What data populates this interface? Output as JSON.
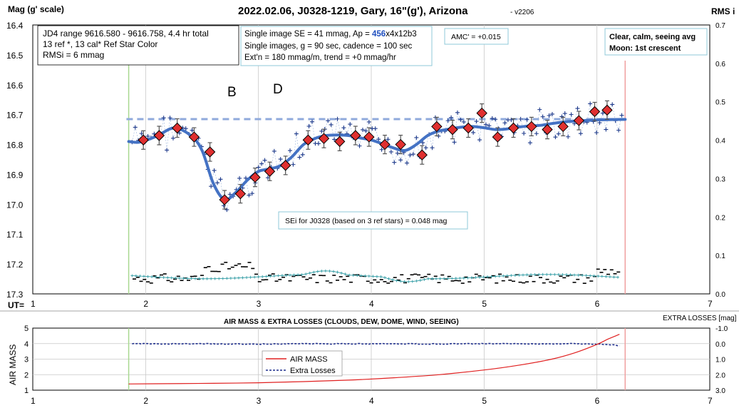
{
  "top_chart": {
    "title": "2022.02.06, J0328-1219, Gary, 16\"(g'), Arizona",
    "version": "- v2206",
    "ylabel": "Mag (g' scale)",
    "rlabel": "RMS i",
    "xlabel": "UT=",
    "y_ticks": [
      "16.4",
      "16.5",
      "16.6",
      "16.7",
      "16.8",
      "16.9",
      "17.0",
      "17.1",
      "17.2",
      "17.3"
    ],
    "r_ticks": [
      "0.7",
      "0.6",
      "0.5",
      "0.4",
      "0.3",
      "0.2",
      "0.1",
      "0.0"
    ],
    "x_ticks": [
      "1",
      "2",
      "3",
      "4",
      "5",
      "6",
      "7"
    ],
    "info_left": [
      "JD4 range 9616.580 - 9616.758, 4.4 hr total",
      "13 ref *, 13 cal*  Ref Star Color",
      "RMSi = 6 mmag"
    ],
    "info_mid_1_pre": "Single image SE = 41 mmag, Ap = ",
    "info_mid_1_ap": "456",
    "info_mid_1_post": "x4x12b3",
    "info_mid_2": "Single images, g = 90 sec, cadence = 100 sec",
    "info_mid_3": "Ext'n = 180 mmag/m, trend = +0 mmag/hr",
    "amc": "AMC' = +0.015",
    "weather": [
      "Clear, calm, seeing avg",
      "Moon: 1st crescent"
    ],
    "label_b": "B",
    "label_d": "D",
    "sei": "SEi for J0328 (based on 3 ref stars) = 0.048 mag"
  },
  "bottom_chart": {
    "title": "AIR MASS & EXTRA LOSSES (CLOUDS, DEW, DOME, WIND, SEEING)",
    "rtitle": "EXTRA LOSSES [mag]",
    "ylabel": "AIR MASS",
    "y_ticks": [
      "5",
      "4",
      "3",
      "2",
      "1"
    ],
    "r_ticks": [
      "-1.0",
      "0.0",
      "1.0",
      "2.0",
      "3.0"
    ],
    "x_ticks": [
      "1",
      "2",
      "3",
      "4",
      "5",
      "6",
      "7"
    ],
    "legend_air": "AIR MASS",
    "legend_loss": "Extra Losses"
  },
  "colors": {
    "binned_fill": "#e03030",
    "fit": "#4472c4",
    "raw": "#1f3b8c",
    "rms_ref": "#3aa0a8",
    "airmass": "#e02020",
    "losses": "#1f2f8c",
    "start_line": "#a8d890",
    "end_line": "#f0a0a0",
    "ap_text": "#1f4fbf"
  },
  "chart_data": [
    {
      "type": "scatter",
      "title": "2022.02.06, J0328-1219, Gary, 16\"(g'), Arizona",
      "xlabel": "UT=",
      "ylabel": "Mag (g' scale)",
      "xlim": [
        1,
        7
      ],
      "ylim": [
        17.3,
        16.4
      ],
      "y2label": "RMS i",
      "y2lim": [
        0.0,
        0.7
      ],
      "grid": true,
      "series": [],
      "binned": {
        "x": [
          1.98,
          2.12,
          2.28,
          2.43,
          2.57,
          2.7,
          2.84,
          2.97,
          3.1,
          3.24,
          3.44,
          3.58,
          3.72,
          3.86,
          3.98,
          4.12,
          4.26,
          4.45,
          4.58,
          4.72,
          4.86,
          4.98,
          5.12,
          5.26,
          5.42,
          5.56,
          5.7,
          5.84,
          5.98,
          6.09
        ],
        "y": [
          16.785,
          16.77,
          16.745,
          16.775,
          16.825,
          16.985,
          16.965,
          16.91,
          16.89,
          16.87,
          16.785,
          16.78,
          16.79,
          16.77,
          16.775,
          16.8,
          16.8,
          16.835,
          16.74,
          16.75,
          16.745,
          16.695,
          16.775,
          16.745,
          16.74,
          16.75,
          16.74,
          16.72,
          16.69,
          16.685
        ]
      },
      "fit": {
        "x": [
          1.85,
          1.95,
          2.1,
          2.25,
          2.4,
          2.5,
          2.6,
          2.7,
          2.8,
          2.9,
          3.0,
          3.1,
          3.2,
          3.3,
          3.4,
          3.5,
          3.6,
          3.7,
          3.8,
          3.9,
          4.0,
          4.1,
          4.2,
          4.3,
          4.4,
          4.5,
          4.6,
          4.7,
          4.8,
          4.9,
          5.0,
          5.1,
          5.2,
          5.3,
          5.4,
          5.5,
          5.6,
          5.7,
          5.8,
          5.9,
          6.0,
          6.1,
          6.25
        ],
        "y": [
          16.79,
          16.792,
          16.772,
          16.745,
          16.77,
          16.82,
          16.93,
          16.985,
          16.96,
          16.92,
          16.89,
          16.882,
          16.87,
          16.84,
          16.8,
          16.78,
          16.77,
          16.768,
          16.77,
          16.778,
          16.785,
          16.798,
          16.812,
          16.82,
          16.8,
          16.77,
          16.755,
          16.748,
          16.742,
          16.74,
          16.744,
          16.75,
          16.748,
          16.742,
          16.738,
          16.736,
          16.73,
          16.725,
          16.722,
          16.72,
          16.718,
          16.717,
          16.716
        ]
      },
      "reference_mag": 16.715,
      "rms_ref_level": 0.045,
      "ut_start": 1.85,
      "ut_end": 6.25
    },
    {
      "type": "line",
      "title": "AIR MASS & EXTRA LOSSES (CLOUDS, DEW, DOME, WIND, SEEING)",
      "ylabel": "AIR MASS",
      "ylim": [
        1,
        5
      ],
      "y2label": "EXTRA LOSSES [mag]",
      "y2lim": [
        -1.0,
        3.0
      ],
      "xlim": [
        1,
        7
      ],
      "series": [
        {
          "name": "AIR MASS",
          "x": [
            1.85,
            2.2,
            2.6,
            3.0,
            3.4,
            3.8,
            4.2,
            4.6,
            5.0,
            5.3,
            5.6,
            5.8,
            6.0,
            6.1,
            6.2
          ],
          "y": [
            1.4,
            1.42,
            1.44,
            1.48,
            1.55,
            1.65,
            1.8,
            2.0,
            2.3,
            2.6,
            3.0,
            3.4,
            3.95,
            4.3,
            4.6
          ]
        },
        {
          "name": "Extra Losses",
          "x": [
            1.85,
            2.2,
            2.6,
            3.0,
            3.4,
            3.8,
            4.2,
            4.6,
            5.0,
            5.4,
            5.8,
            5.95,
            6.05,
            6.15,
            6.2
          ],
          "y": [
            0.0,
            0.02,
            0.01,
            0.03,
            0.0,
            0.02,
            0.01,
            0.02,
            0.0,
            0.01,
            0.0,
            0.02,
            0.05,
            0.1,
            0.12
          ]
        }
      ]
    }
  ]
}
